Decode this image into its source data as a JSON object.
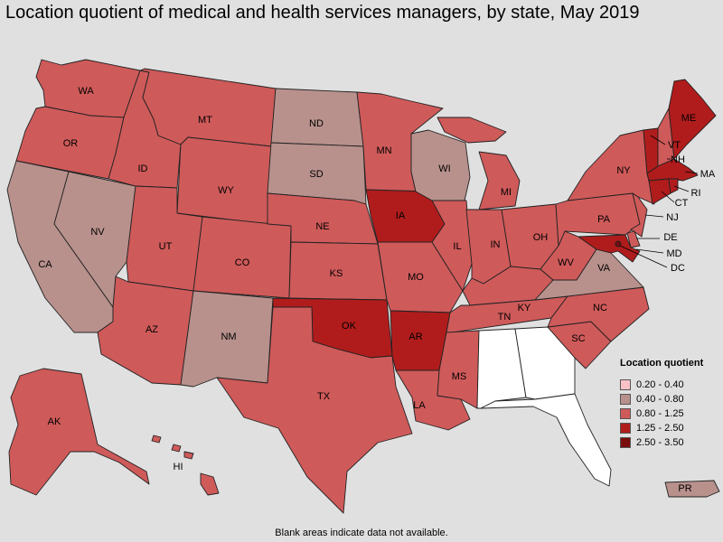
{
  "title": "Location quotient of medical and health services managers, by state, May 2019",
  "footnote": "Blank areas indicate data not available.",
  "legend": {
    "title": "Location quotient",
    "bins": [
      {
        "label": "0.20 - 0.40",
        "color": "#f9c1c6"
      },
      {
        "label": "0.40 - 0.80",
        "color": "#b8918c"
      },
      {
        "label": "0.80 - 1.25",
        "color": "#cf5a5a"
      },
      {
        "label": "1.25 - 2.50",
        "color": "#b01c1c"
      },
      {
        "label": "2.50 - 3.50",
        "color": "#7a0c0c"
      }
    ]
  },
  "no_data_color": "#ffffff",
  "states": {
    "WA": 2,
    "OR": 2,
    "CA": 1,
    "NV": 1,
    "ID": 2,
    "MT": 2,
    "WY": 2,
    "UT": 2,
    "AZ": 2,
    "CO": 2,
    "NM": 1,
    "ND": 1,
    "SD": 1,
    "NE": 2,
    "KS": 2,
    "OK": 3,
    "TX": 2,
    "MN": 2,
    "IA": 3,
    "MO": 2,
    "AR": 3,
    "LA": 2,
    "WI": 1,
    "IL": 2,
    "MI": 2,
    "IN": 2,
    "OH": 2,
    "KY": 2,
    "TN": 2,
    "MS": 2,
    "AL": -1,
    "GA": -1,
    "FL": -1,
    "SC": 2,
    "NC": 2,
    "VA": 1,
    "WV": 2,
    "PA": 2,
    "NY": 2,
    "ME": 3,
    "VT": 3,
    "NH": 2,
    "MA": 3,
    "RI": 3,
    "CT": 3,
    "NJ": 2,
    "DE": 2,
    "MD": 3,
    "DC": 4,
    "AK": 2,
    "HI": 2,
    "PR": 1
  }
}
